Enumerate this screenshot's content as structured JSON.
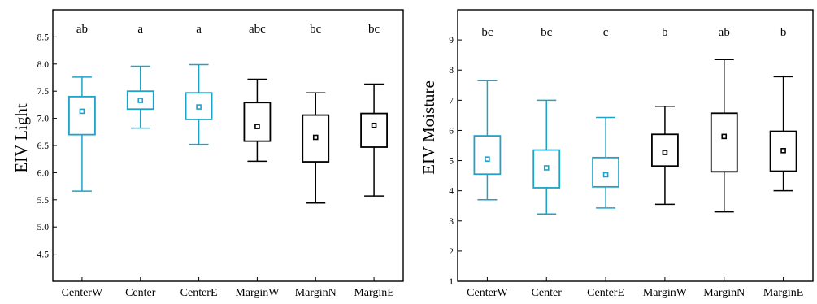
{
  "chart_data": [
    {
      "type": "box",
      "title": "",
      "xlabel": "",
      "ylabel": "EIV Light",
      "ylim": [
        4.0,
        9.0
      ],
      "yticks": [
        "4.5",
        "5.0",
        "5.5",
        "6.0",
        "6.5",
        "7.0",
        "7.5",
        "8.0",
        "8.5"
      ],
      "categories": [
        "CenterW",
        "Center",
        "CenterE",
        "MarginW",
        "MarginN",
        "MarginE"
      ],
      "series": [
        {
          "category": "CenterW",
          "color": "#1fa2c7",
          "min": 5.66,
          "q1": 6.7,
          "mean": 7.13,
          "q3": 7.4,
          "max": 7.76,
          "letters": "ab"
        },
        {
          "category": "Center",
          "color": "#1fa2c7",
          "min": 6.82,
          "q1": 7.17,
          "mean": 7.33,
          "q3": 7.5,
          "max": 7.96,
          "letters": "a"
        },
        {
          "category": "CenterE",
          "color": "#1fa2c7",
          "min": 6.52,
          "q1": 6.98,
          "mean": 7.21,
          "q3": 7.47,
          "max": 7.99,
          "letters": "a"
        },
        {
          "category": "MarginW",
          "color": "#000000",
          "min": 6.21,
          "q1": 6.58,
          "mean": 6.85,
          "q3": 7.29,
          "max": 7.72,
          "letters": "abc"
        },
        {
          "category": "MarginN",
          "color": "#000000",
          "min": 5.44,
          "q1": 6.2,
          "mean": 6.65,
          "q3": 7.06,
          "max": 7.47,
          "letters": "bc"
        },
        {
          "category": "MarginE",
          "color": "#000000",
          "min": 5.57,
          "q1": 6.47,
          "mean": 6.87,
          "q3": 7.09,
          "max": 7.63,
          "letters": "bc"
        }
      ]
    },
    {
      "type": "box",
      "title": "",
      "xlabel": "",
      "ylabel": "EIV Moisture",
      "ylim": [
        1.0,
        10.0
      ],
      "yticks": [
        "1",
        "2",
        "3",
        "4",
        "5",
        "6",
        "7",
        "8",
        "9"
      ],
      "categories": [
        "CenterW",
        "Center",
        "CenterE",
        "MarginW",
        "MarginN",
        "MarginE"
      ],
      "series": [
        {
          "category": "CenterW",
          "color": "#1fa2c7",
          "min": 3.7,
          "q1": 4.55,
          "mean": 5.05,
          "q3": 5.82,
          "max": 7.65,
          "letters": "bc"
        },
        {
          "category": "Center",
          "color": "#1fa2c7",
          "min": 3.23,
          "q1": 4.1,
          "mean": 4.76,
          "q3": 5.35,
          "max": 7.0,
          "letters": "bc"
        },
        {
          "category": "CenterE",
          "color": "#1fa2c7",
          "min": 3.43,
          "q1": 4.13,
          "mean": 4.53,
          "q3": 5.1,
          "max": 6.43,
          "letters": "c"
        },
        {
          "category": "MarginW",
          "color": "#000000",
          "min": 3.55,
          "q1": 4.82,
          "mean": 5.27,
          "q3": 5.87,
          "max": 6.8,
          "letters": "b"
        },
        {
          "category": "MarginN",
          "color": "#000000",
          "min": 3.3,
          "q1": 4.63,
          "mean": 5.8,
          "q3": 6.57,
          "max": 8.35,
          "letters": "ab"
        },
        {
          "category": "MarginE",
          "color": "#000000",
          "min": 4.0,
          "q1": 4.65,
          "mean": 5.33,
          "q3": 5.97,
          "max": 7.78,
          "letters": "b"
        }
      ]
    }
  ]
}
